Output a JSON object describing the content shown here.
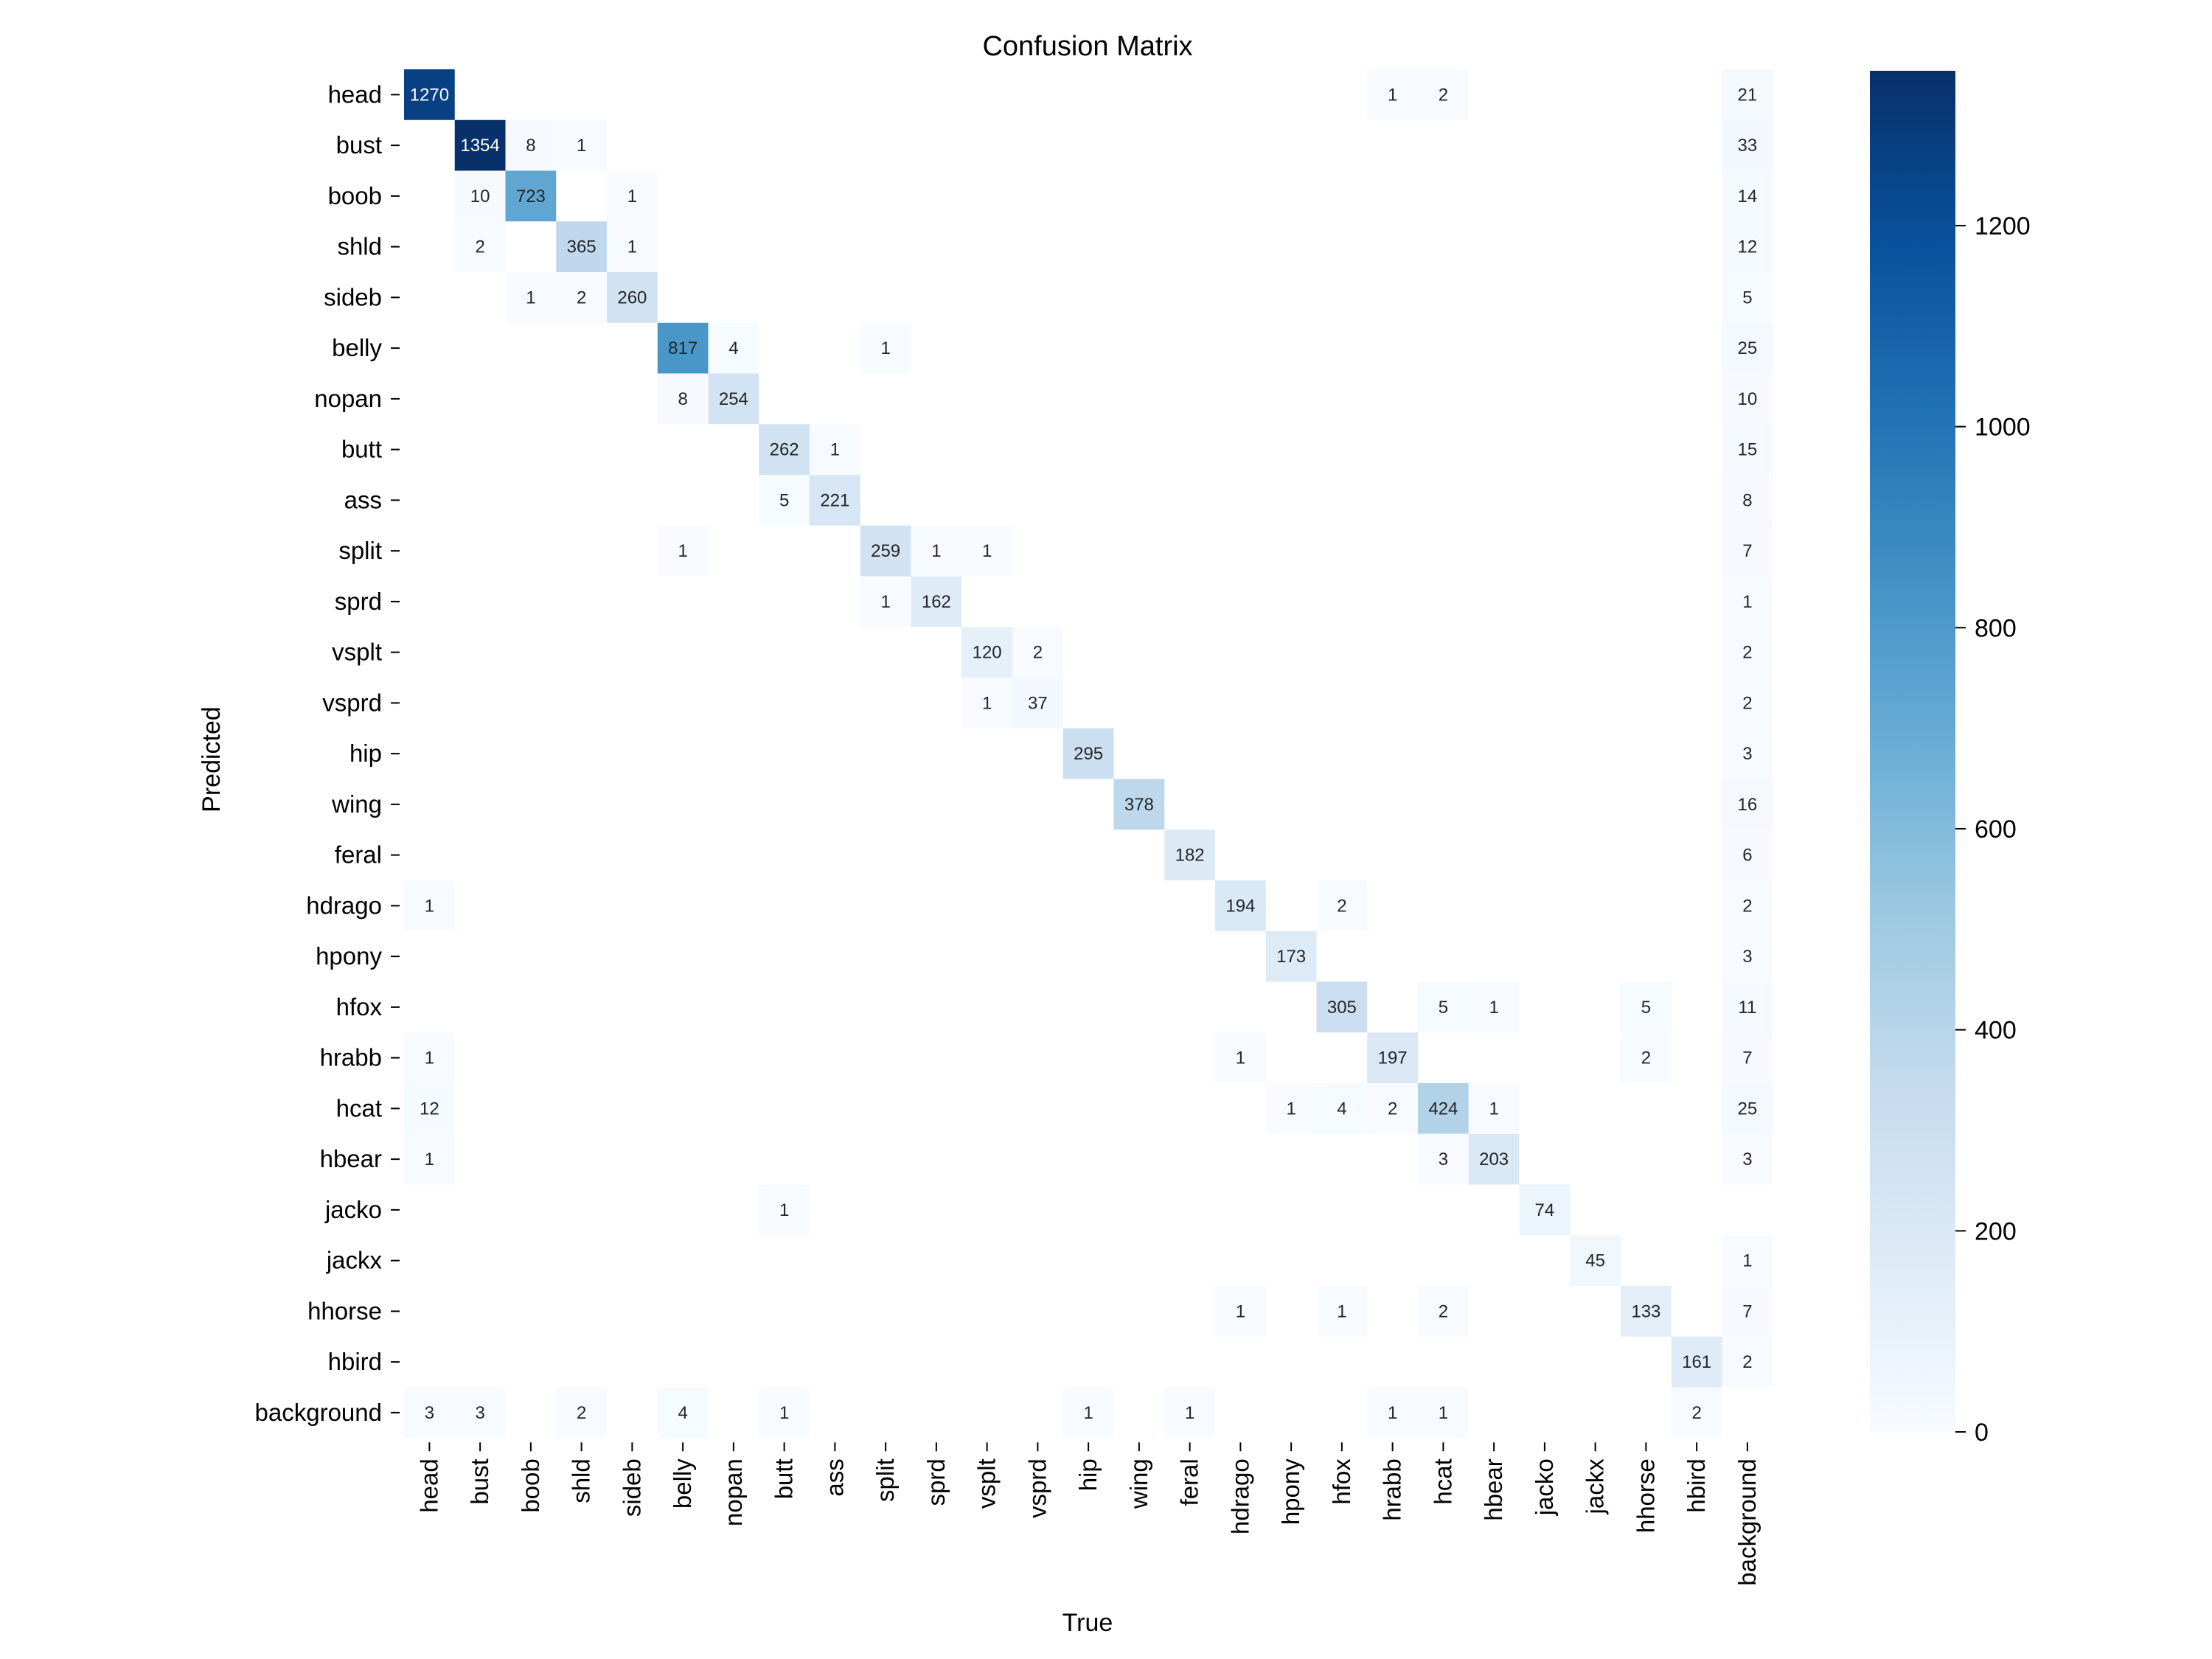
{
  "chart_data": {
    "type": "heatmap",
    "title": "Confusion Matrix",
    "xlabel": "True",
    "ylabel": "Predicted",
    "categories": [
      "head",
      "bust",
      "boob",
      "shld",
      "sideb",
      "belly",
      "nopan",
      "butt",
      "ass",
      "split",
      "sprd",
      "vsplt",
      "vsprd",
      "hip",
      "wing",
      "feral",
      "hdrago",
      "hpony",
      "hfox",
      "hrabb",
      "hcat",
      "hbear",
      "jacko",
      "jackx",
      "hhorse",
      "hbird",
      "background"
    ],
    "cells": [
      [
        0,
        0,
        1270
      ],
      [
        0,
        19,
        1
      ],
      [
        0,
        20,
        2
      ],
      [
        0,
        26,
        21
      ],
      [
        1,
        1,
        1354
      ],
      [
        1,
        2,
        8
      ],
      [
        1,
        3,
        1
      ],
      [
        1,
        26,
        33
      ],
      [
        2,
        1,
        10
      ],
      [
        2,
        2,
        723
      ],
      [
        2,
        4,
        1
      ],
      [
        2,
        26,
        14
      ],
      [
        3,
        1,
        2
      ],
      [
        3,
        3,
        365
      ],
      [
        3,
        4,
        1
      ],
      [
        3,
        26,
        12
      ],
      [
        4,
        2,
        1
      ],
      [
        4,
        3,
        2
      ],
      [
        4,
        4,
        260
      ],
      [
        4,
        26,
        5
      ],
      [
        5,
        5,
        817
      ],
      [
        5,
        6,
        4
      ],
      [
        5,
        9,
        1
      ],
      [
        5,
        26,
        25
      ],
      [
        6,
        5,
        8
      ],
      [
        6,
        6,
        254
      ],
      [
        6,
        26,
        10
      ],
      [
        7,
        7,
        262
      ],
      [
        7,
        8,
        1
      ],
      [
        7,
        26,
        15
      ],
      [
        8,
        7,
        5
      ],
      [
        8,
        8,
        221
      ],
      [
        8,
        26,
        8
      ],
      [
        9,
        5,
        1
      ],
      [
        9,
        9,
        259
      ],
      [
        9,
        10,
        1
      ],
      [
        9,
        11,
        1
      ],
      [
        9,
        26,
        7
      ],
      [
        10,
        9,
        1
      ],
      [
        10,
        10,
        162
      ],
      [
        10,
        26,
        1
      ],
      [
        11,
        11,
        120
      ],
      [
        11,
        12,
        2
      ],
      [
        11,
        26,
        2
      ],
      [
        12,
        11,
        1
      ],
      [
        12,
        12,
        37
      ],
      [
        12,
        26,
        2
      ],
      [
        13,
        13,
        295
      ],
      [
        13,
        26,
        3
      ],
      [
        14,
        14,
        378
      ],
      [
        14,
        26,
        16
      ],
      [
        15,
        15,
        182
      ],
      [
        15,
        26,
        6
      ],
      [
        16,
        0,
        1
      ],
      [
        16,
        16,
        194
      ],
      [
        16,
        18,
        2
      ],
      [
        16,
        26,
        2
      ],
      [
        17,
        17,
        173
      ],
      [
        17,
        26,
        3
      ],
      [
        18,
        18,
        305
      ],
      [
        18,
        20,
        5
      ],
      [
        18,
        21,
        1
      ],
      [
        18,
        24,
        5
      ],
      [
        18,
        26,
        11
      ],
      [
        19,
        0,
        1
      ],
      [
        19,
        16,
        1
      ],
      [
        19,
        19,
        197
      ],
      [
        19,
        24,
        2
      ],
      [
        19,
        26,
        7
      ],
      [
        20,
        0,
        12
      ],
      [
        20,
        17,
        1
      ],
      [
        20,
        18,
        4
      ],
      [
        20,
        19,
        2
      ],
      [
        20,
        20,
        424
      ],
      [
        20,
        21,
        1
      ],
      [
        20,
        26,
        25
      ],
      [
        21,
        0,
        1
      ],
      [
        21,
        20,
        3
      ],
      [
        21,
        21,
        203
      ],
      [
        21,
        26,
        3
      ],
      [
        22,
        7,
        1
      ],
      [
        22,
        22,
        74
      ],
      [
        23,
        23,
        45
      ],
      [
        23,
        26,
        1
      ],
      [
        24,
        16,
        1
      ],
      [
        24,
        18,
        1
      ],
      [
        24,
        20,
        2
      ],
      [
        24,
        24,
        133
      ],
      [
        24,
        26,
        7
      ],
      [
        25,
        25,
        161
      ],
      [
        25,
        26,
        2
      ],
      [
        26,
        0,
        3
      ],
      [
        26,
        1,
        3
      ],
      [
        26,
        3,
        2
      ],
      [
        26,
        5,
        4
      ],
      [
        26,
        7,
        1
      ],
      [
        26,
        13,
        1
      ],
      [
        26,
        15,
        1
      ],
      [
        26,
        19,
        1
      ],
      [
        26,
        20,
        1
      ],
      [
        26,
        25,
        2
      ]
    ],
    "colorbar": {
      "min": 0,
      "max": 1354,
      "ticks": [
        0,
        200,
        400,
        600,
        800,
        1000,
        1200
      ],
      "colormap": "Blues",
      "colors": [
        "#f7fbff",
        "#deebf7",
        "#c6dbef",
        "#9ecae1",
        "#6baed6",
        "#4292c6",
        "#2171b5",
        "#08519c",
        "#08306b"
      ]
    },
    "grid": false
  }
}
